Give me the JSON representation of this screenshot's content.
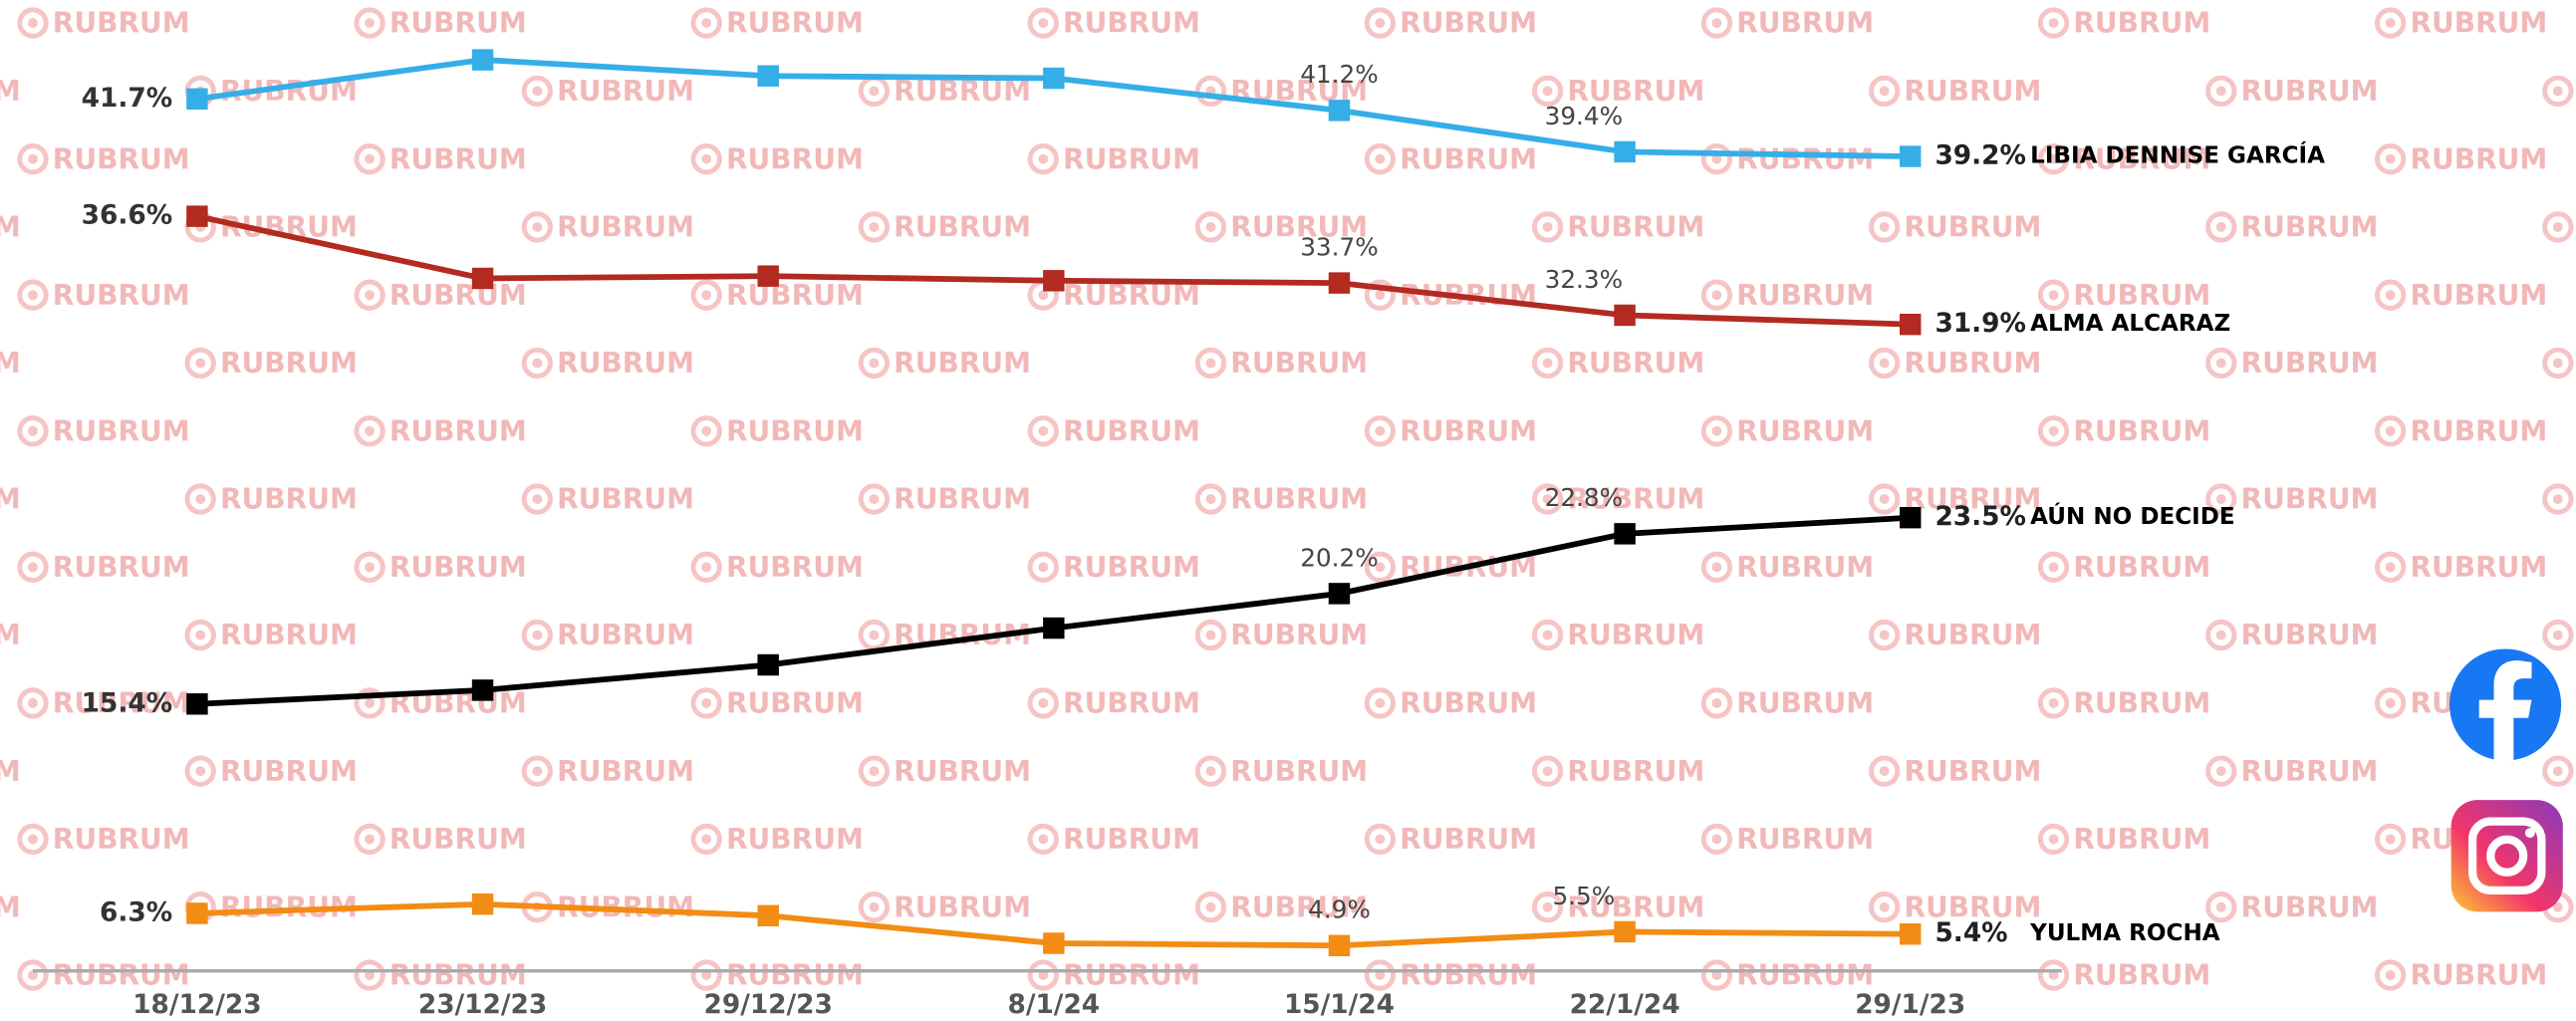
{
  "chart_data": {
    "type": "line",
    "watermark": "RUBRUM",
    "categories": [
      "18/12/23",
      "23/12/23",
      "29/12/23",
      "8/1/24",
      "15/1/24",
      "22/1/24",
      "29/1/23"
    ],
    "ylim": [
      3.8,
      46
    ],
    "series": [
      {
        "name": "LIBIA DENNISE GARCÍA",
        "color": "#35aee8",
        "values": [
          41.7,
          43.4,
          42.7,
          42.6,
          41.2,
          39.4,
          39.2
        ],
        "value_labels": [
          "41.7%",
          null,
          null,
          null,
          "41.2%",
          "39.4%",
          "39.2%"
        ]
      },
      {
        "name": "ALMA ALCARAZ",
        "color": "#b22a20",
        "values": [
          36.6,
          33.9,
          34.0,
          33.8,
          33.7,
          32.3,
          31.9
        ],
        "value_labels": [
          "36.6%",
          null,
          null,
          null,
          "33.7%",
          "32.3%",
          "31.9%"
        ]
      },
      {
        "name": "AÚN NO DECIDE",
        "color": "#000000",
        "values": [
          15.4,
          16.0,
          17.1,
          18.7,
          20.2,
          22.8,
          23.5
        ],
        "value_labels": [
          "15.4%",
          null,
          null,
          null,
          "20.2%",
          "22.8%",
          "23.5%"
        ]
      },
      {
        "name": "YULMA ROCHA",
        "color": "#f28c14",
        "values": [
          6.3,
          6.7,
          6.2,
          5.0,
          4.9,
          5.5,
          5.4
        ],
        "value_labels": [
          "6.3%",
          null,
          null,
          null,
          "4.9%",
          "5.5%",
          "5.4%"
        ]
      }
    ]
  }
}
